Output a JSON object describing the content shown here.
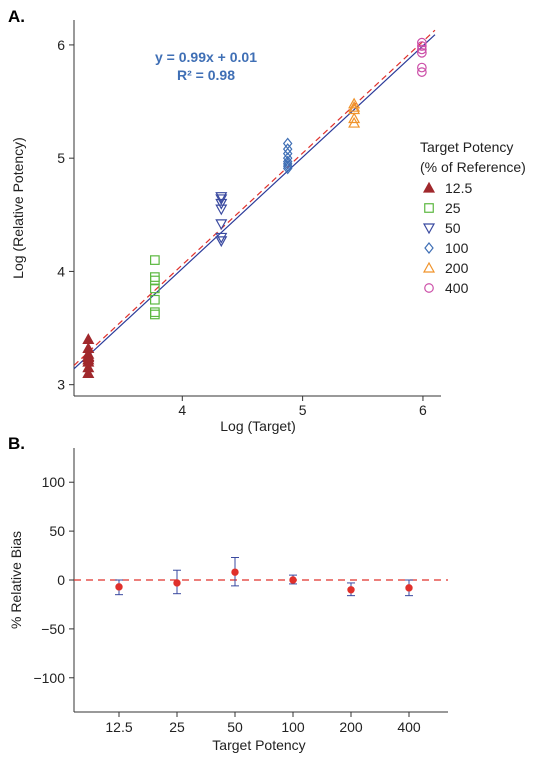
{
  "chart_data": [
    {
      "type": "scatter",
      "panel_label": "A.",
      "xlabel": "Log (Target)",
      "ylabel": "Log (Relative Potency)",
      "xlim": [
        3.1,
        6.15
      ],
      "ylim": [
        2.9,
        6.22
      ],
      "xticks": [
        "4",
        "5",
        "6"
      ],
      "yticks": [
        "3",
        "4",
        "5",
        "6"
      ],
      "annotation": {
        "equation": "y = 0.99x + 0.01",
        "r2": "R² = 0.98"
      },
      "legend": {
        "title_line1": "Target Potency",
        "title_line2": "(% of Reference)",
        "placement": "right"
      },
      "series": [
        {
          "name": "12.5",
          "marker": "triangle-up-filled",
          "color": "#a0282c",
          "x": 3.219,
          "y": [
            3.4,
            3.32,
            3.27,
            3.25,
            3.24,
            3.22,
            3.2,
            3.15,
            3.1
          ]
        },
        {
          "name": "25",
          "marker": "square-open",
          "color": "#5cb840",
          "x": 3.772,
          "y": [
            4.1,
            3.95,
            3.92,
            3.85,
            3.75,
            3.64,
            3.62
          ]
        },
        {
          "name": "50",
          "marker": "triangle-down-open",
          "color": "#3a4aa0",
          "x": 4.324,
          "y": [
            4.66,
            4.64,
            4.6,
            4.55,
            4.42,
            4.3,
            4.27
          ]
        },
        {
          "name": "100",
          "marker": "diamond-open",
          "color": "#3f6fb5",
          "x": 4.876,
          "y": [
            5.13,
            5.08,
            5.04,
            5.0,
            4.97,
            4.95,
            4.93,
            4.91
          ]
        },
        {
          "name": "200",
          "marker": "triangle-up-open",
          "color": "#f0932b",
          "x": 5.428,
          "y": [
            5.48,
            5.45,
            5.43,
            5.35,
            5.31
          ]
        },
        {
          "name": "400",
          "marker": "circle-open",
          "color": "#cc4fa8",
          "x": 5.991,
          "y": [
            6.02,
            5.99,
            5.96,
            5.93,
            5.8,
            5.76
          ]
        }
      ],
      "lines": [
        {
          "style": "solid",
          "color": "#2b3b9a",
          "x": [
            3.1,
            6.1
          ],
          "y": [
            3.14,
            6.09
          ]
        },
        {
          "style": "dashed",
          "color": "#e0302b",
          "x": [
            3.1,
            6.1
          ],
          "y": [
            3.17,
            6.13
          ]
        }
      ]
    },
    {
      "type": "scatter",
      "panel_label": "B.",
      "xlabel": "Target Potency",
      "ylabel": "% Relative Bias",
      "categories": [
        "12.5",
        "25",
        "50",
        "100",
        "200",
        "400"
      ],
      "ylim": [
        -135,
        135
      ],
      "yticks": [
        "100",
        "50",
        "0",
        "−50",
        "−100"
      ],
      "yticks_values": [
        100,
        50,
        0,
        -50,
        -100
      ],
      "point_color": "#e0302b",
      "errorbar_color": "#3a4aa0",
      "reference_line": {
        "y": 0,
        "style": "dashed",
        "color": "#e0302b"
      },
      "values": [
        -7,
        -3,
        8,
        0,
        -10,
        -8
      ],
      "err_low": [
        -15,
        -14,
        -6,
        -4,
        -16,
        -16
      ],
      "err_high": [
        0,
        10,
        23,
        5,
        -3,
        0
      ]
    }
  ]
}
